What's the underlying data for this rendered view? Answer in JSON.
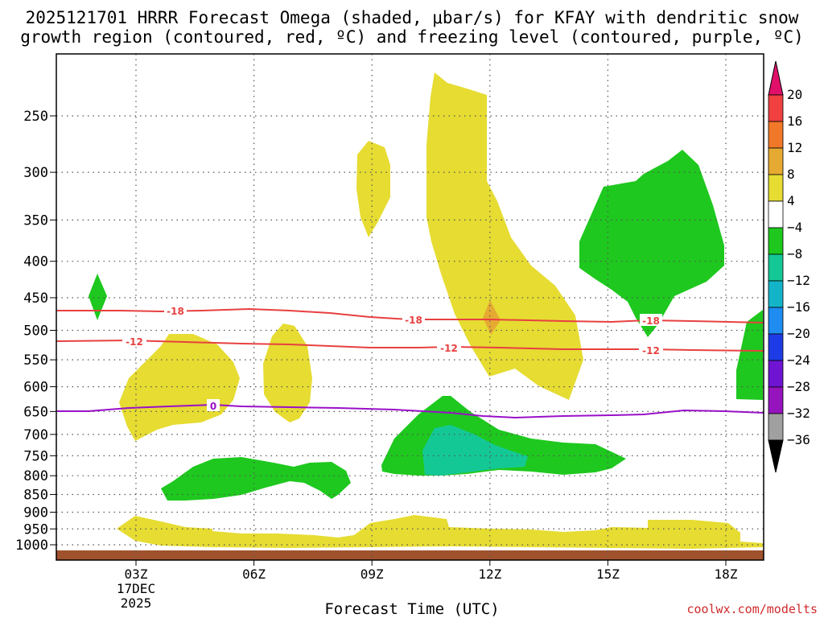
{
  "chart_data": {
    "type": "contour",
    "title_line1": "2025121701 HRRR Forecast Omega (shaded, μbar/s) for KFAY with dendritic snow",
    "title_line2": "growth region (contoured, red, ºC) and freezing level (contoured, purple, ºC)",
    "xlabel": "Forecast Time (UTC)",
    "x_ticks": [
      "03Z",
      "06Z",
      "09Z",
      "12Z",
      "15Z",
      "18Z"
    ],
    "x_sub_labels": [
      "17DEC",
      "2025"
    ],
    "y_ticks": [
      250,
      300,
      350,
      400,
      450,
      500,
      550,
      600,
      650,
      700,
      750,
      800,
      850,
      900,
      950,
      1000
    ],
    "y_scale": "log-pressure (inverted)",
    "grid": true,
    "colorbar": {
      "labels": [
        "20",
        "16",
        "12",
        "8",
        "4",
        "−4",
        "−8",
        "−12",
        "−16",
        "−20",
        "−24",
        "−28",
        "−32",
        "−36"
      ],
      "colors": [
        "#e0106a",
        "#f04040",
        "#f07828",
        "#e6aa32",
        "#e6dc32",
        "#ffffff",
        "#1ec81e",
        "#14c896",
        "#14b4c8",
        "#1e8cf0",
        "#1e3ce6",
        "#6e14d2",
        "#9614be",
        "#a0a0a0",
        "#000000"
      ]
    },
    "contours": [
      {
        "color": "#e84040",
        "label_value": "-18"
      },
      {
        "color": "#e84040",
        "label_value": "-12"
      },
      {
        "color": "#9a10c8",
        "label_value": "0"
      }
    ],
    "ground_color": "#a0522d",
    "credit": "coolwx.com/modelts"
  }
}
